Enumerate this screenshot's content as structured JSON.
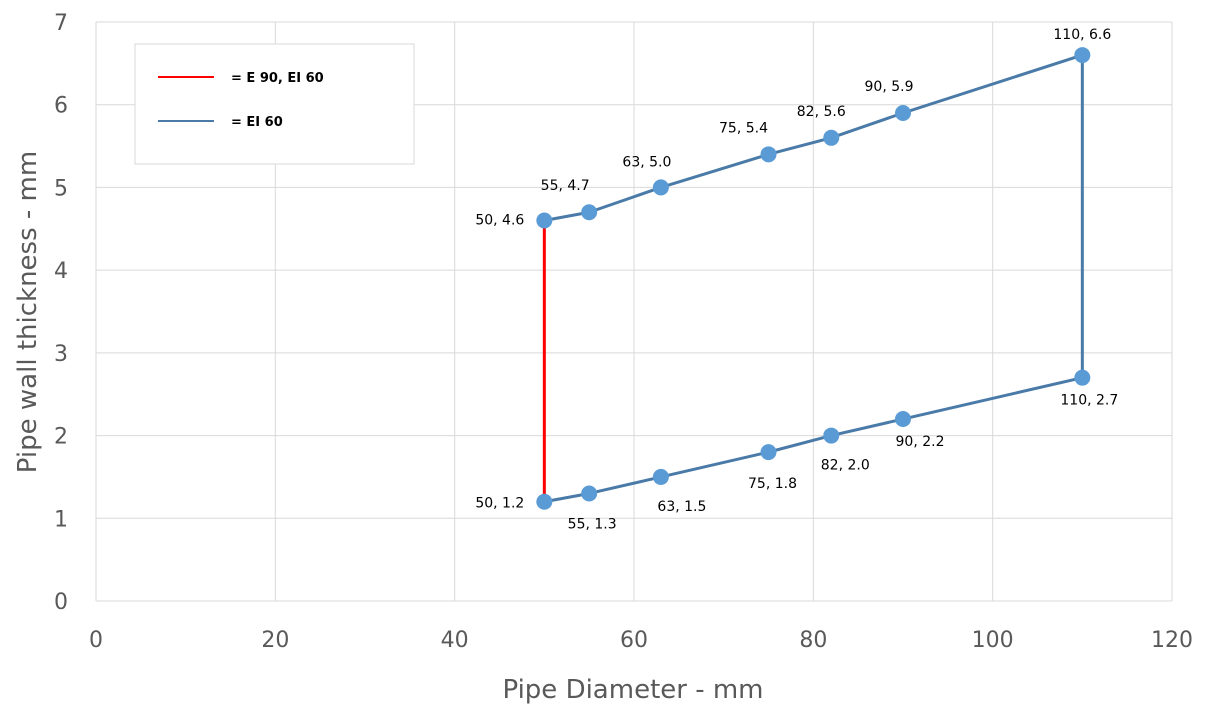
{
  "chart_data": {
    "type": "scatter",
    "xlabel": "Pipe Diameter - mm",
    "ylabel": "Pipe wall thickness - mm",
    "xlim": [
      0,
      120
    ],
    "ylim": [
      0,
      7
    ],
    "x_ticks": [
      "0",
      "20",
      "40",
      "60",
      "80",
      "100",
      "120"
    ],
    "y_ticks": [
      "0",
      "1",
      "2",
      "3",
      "4",
      "5",
      "6",
      "7"
    ],
    "grid": true,
    "legend_placement": "top-left",
    "points": [
      {
        "x": 50,
        "y": 4.6,
        "label": "50, 4.6"
      },
      {
        "x": 55,
        "y": 4.7,
        "label": "55, 4.7"
      },
      {
        "x": 63,
        "y": 5.0,
        "label": "63, 5.0"
      },
      {
        "x": 75,
        "y": 5.4,
        "label": "75, 5.4"
      },
      {
        "x": 82,
        "y": 5.6,
        "label": "82, 5.6"
      },
      {
        "x": 90,
        "y": 5.9,
        "label": "90, 5.9"
      },
      {
        "x": 110,
        "y": 6.6,
        "label": "110, 6.6"
      },
      {
        "x": 50,
        "y": 1.2,
        "label": "50, 1.2"
      },
      {
        "x": 55,
        "y": 1.3,
        "label": "55, 1.3"
      },
      {
        "x": 63,
        "y": 1.5,
        "label": "63, 1.5"
      },
      {
        "x": 75,
        "y": 1.8,
        "label": "75, 1.8"
      },
      {
        "x": 82,
        "y": 2.0,
        "label": "82, 2.0"
      },
      {
        "x": 90,
        "y": 2.2,
        "label": "90, 2.2"
      },
      {
        "x": 110,
        "y": 2.7,
        "label": "110, 2.7"
      }
    ],
    "series": [
      {
        "name": "= E 90, EI 60",
        "color": "#ff0000",
        "x": [
          50,
          50
        ],
        "y": [
          4.6,
          1.2
        ]
      },
      {
        "name": "= EI 60",
        "color": "#4a7ba8",
        "x": [
          50,
          55,
          63,
          75,
          82,
          90,
          110,
          110,
          90,
          82,
          75,
          63,
          55,
          50
        ],
        "y": [
          4.6,
          4.7,
          5.0,
          5.4,
          5.6,
          5.9,
          6.6,
          2.7,
          2.2,
          2.0,
          1.8,
          1.5,
          1.3,
          1.2
        ]
      }
    ],
    "colors": {
      "marker": "#5b9bd5",
      "grid": "#d9d9d9",
      "text": "#595959"
    }
  }
}
